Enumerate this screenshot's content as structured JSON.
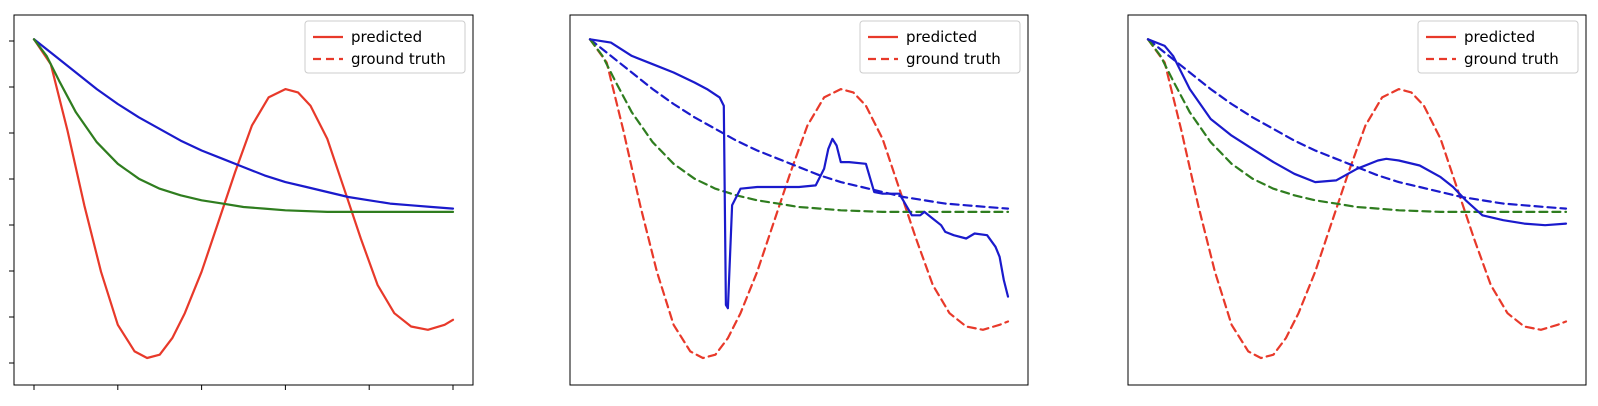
{
  "chart_data": [
    {
      "type": "line",
      "xlim": [
        0,
        100
      ],
      "ylim": [
        -0.95,
        1.05
      ],
      "xtick_count": 6,
      "ytick_count": 8,
      "legend": {
        "placement": "top-right",
        "entries": [
          {
            "label": "predicted",
            "style": "solid",
            "color": "#e8392a"
          },
          {
            "label": "ground truth",
            "style": "dashed",
            "color": "#e8392a"
          }
        ]
      },
      "series": [
        {
          "style": "solid",
          "color": "#e8392a",
          "x": [
            0,
            4,
            8,
            12,
            16,
            20,
            24,
            27,
            30,
            33,
            36,
            40,
            44,
            48,
            52,
            56,
            60,
            63,
            66,
            70,
            74,
            78,
            82,
            86,
            90,
            94,
            98,
            100
          ],
          "y": [
            1.0,
            0.85,
            0.45,
            0.0,
            -0.4,
            -0.72,
            -0.88,
            -0.92,
            -0.9,
            -0.8,
            -0.65,
            -0.4,
            -0.1,
            0.2,
            0.48,
            0.65,
            0.7,
            0.68,
            0.6,
            0.4,
            0.1,
            -0.2,
            -0.48,
            -0.65,
            -0.73,
            -0.75,
            -0.72,
            -0.69
          ]
        },
        {
          "style": "solid",
          "color": "#1a1acc",
          "x": [
            0,
            5,
            10,
            15,
            20,
            25,
            30,
            35,
            40,
            45,
            50,
            55,
            60,
            65,
            70,
            75,
            80,
            85,
            90,
            95,
            100
          ],
          "y": [
            1.0,
            0.9,
            0.8,
            0.7,
            0.61,
            0.53,
            0.46,
            0.39,
            0.33,
            0.28,
            0.23,
            0.18,
            0.14,
            0.11,
            0.08,
            0.05,
            0.03,
            0.01,
            0.0,
            -0.01,
            -0.02
          ]
        },
        {
          "style": "solid",
          "color": "#2f7d1f",
          "x": [
            0,
            3,
            6,
            10,
            15,
            20,
            25,
            30,
            35,
            40,
            45,
            50,
            55,
            60,
            70,
            80,
            90,
            100
          ],
          "y": [
            1.0,
            0.9,
            0.75,
            0.56,
            0.38,
            0.25,
            0.16,
            0.1,
            0.06,
            0.03,
            0.01,
            -0.01,
            -0.02,
            -0.03,
            -0.04,
            -0.04,
            -0.04,
            -0.04
          ]
        }
      ]
    },
    {
      "type": "line",
      "xlim": [
        0,
        100
      ],
      "ylim": [
        -0.95,
        1.05
      ],
      "legend": {
        "placement": "top-right",
        "entries": [
          {
            "label": "predicted",
            "style": "solid",
            "color": "#e8392a"
          },
          {
            "label": "ground truth",
            "style": "dashed",
            "color": "#e8392a"
          }
        ]
      },
      "series": [
        {
          "style": "dashed",
          "color": "#e8392a",
          "x": [
            0,
            4,
            8,
            12,
            16,
            20,
            24,
            27,
            30,
            33,
            36,
            40,
            44,
            48,
            52,
            56,
            60,
            63,
            66,
            70,
            74,
            78,
            82,
            86,
            90,
            94,
            98,
            100
          ],
          "y": [
            1.0,
            0.86,
            0.45,
            0.0,
            -0.4,
            -0.72,
            -0.88,
            -0.92,
            -0.9,
            -0.8,
            -0.65,
            -0.4,
            -0.1,
            0.2,
            0.48,
            0.65,
            0.7,
            0.68,
            0.6,
            0.4,
            0.1,
            -0.2,
            -0.48,
            -0.65,
            -0.73,
            -0.75,
            -0.72,
            -0.7
          ]
        },
        {
          "style": "dashed",
          "color": "#1a1acc",
          "x": [
            0,
            5,
            10,
            15,
            20,
            25,
            30,
            35,
            40,
            45,
            50,
            55,
            60,
            65,
            70,
            75,
            80,
            85,
            90,
            95,
            100
          ],
          "y": [
            1.0,
            0.9,
            0.8,
            0.7,
            0.61,
            0.53,
            0.46,
            0.39,
            0.33,
            0.28,
            0.23,
            0.18,
            0.14,
            0.11,
            0.08,
            0.05,
            0.03,
            0.01,
            0.0,
            -0.01,
            -0.02
          ]
        },
        {
          "style": "dashed",
          "color": "#2f7d1f",
          "x": [
            0,
            3,
            6,
            10,
            15,
            20,
            25,
            30,
            35,
            40,
            45,
            50,
            55,
            60,
            70,
            80,
            90,
            100
          ],
          "y": [
            1.0,
            0.9,
            0.75,
            0.56,
            0.38,
            0.25,
            0.16,
            0.1,
            0.06,
            0.03,
            0.01,
            -0.01,
            -0.02,
            -0.03,
            -0.04,
            -0.04,
            -0.04,
            -0.04
          ]
        },
        {
          "style": "solid",
          "color": "#1a1acc",
          "x": [
            0,
            5,
            10,
            15,
            20,
            25,
            28,
            31,
            32,
            32.5,
            33,
            34,
            36,
            40,
            45,
            50,
            54,
            56,
            57,
            58,
            59,
            60,
            62,
            66,
            68,
            70,
            72,
            74,
            77,
            79,
            80,
            82,
            84,
            85,
            87,
            90,
            92,
            95,
            97,
            98,
            99,
            100
          ],
          "y": [
            1.0,
            0.98,
            0.9,
            0.85,
            0.8,
            0.74,
            0.7,
            0.65,
            0.6,
            -0.6,
            -0.62,
            0.0,
            0.1,
            0.11,
            0.11,
            0.11,
            0.12,
            0.22,
            0.34,
            0.4,
            0.36,
            0.26,
            0.26,
            0.25,
            0.08,
            0.07,
            0.07,
            0.07,
            -0.06,
            -0.06,
            -0.04,
            -0.08,
            -0.12,
            -0.16,
            -0.18,
            -0.2,
            -0.17,
            -0.18,
            -0.25,
            -0.31,
            -0.45,
            -0.55
          ]
        }
      ]
    },
    {
      "type": "line",
      "xlim": [
        0,
        100
      ],
      "ylim": [
        -0.95,
        1.05
      ],
      "legend": {
        "placement": "top-right",
        "entries": [
          {
            "label": "predicted",
            "style": "solid",
            "color": "#e8392a"
          },
          {
            "label": "ground truth",
            "style": "dashed",
            "color": "#e8392a"
          }
        ]
      },
      "series": [
        {
          "style": "dashed",
          "color": "#e8392a",
          "x": [
            0,
            4,
            8,
            12,
            16,
            20,
            24,
            27,
            30,
            33,
            36,
            40,
            44,
            48,
            52,
            56,
            60,
            63,
            66,
            70,
            74,
            78,
            82,
            86,
            90,
            94,
            98,
            100
          ],
          "y": [
            1.0,
            0.86,
            0.45,
            0.0,
            -0.4,
            -0.72,
            -0.88,
            -0.92,
            -0.9,
            -0.8,
            -0.65,
            -0.4,
            -0.1,
            0.2,
            0.48,
            0.65,
            0.7,
            0.68,
            0.6,
            0.4,
            0.1,
            -0.2,
            -0.48,
            -0.65,
            -0.73,
            -0.75,
            -0.72,
            -0.7
          ]
        },
        {
          "style": "dashed",
          "color": "#1a1acc",
          "x": [
            0,
            5,
            10,
            15,
            20,
            25,
            30,
            35,
            40,
            45,
            50,
            55,
            60,
            65,
            70,
            75,
            80,
            85,
            90,
            95,
            100
          ],
          "y": [
            1.0,
            0.9,
            0.8,
            0.7,
            0.61,
            0.53,
            0.46,
            0.39,
            0.33,
            0.28,
            0.23,
            0.18,
            0.14,
            0.11,
            0.08,
            0.05,
            0.03,
            0.01,
            0.0,
            -0.01,
            -0.02
          ]
        },
        {
          "style": "dashed",
          "color": "#2f7d1f",
          "x": [
            0,
            3,
            6,
            10,
            15,
            20,
            25,
            30,
            35,
            40,
            45,
            50,
            55,
            60,
            70,
            80,
            90,
            100
          ],
          "y": [
            1.0,
            0.9,
            0.75,
            0.56,
            0.38,
            0.25,
            0.16,
            0.1,
            0.06,
            0.03,
            0.01,
            -0.01,
            -0.02,
            -0.03,
            -0.04,
            -0.04,
            -0.04,
            -0.04
          ]
        },
        {
          "style": "solid",
          "color": "#1a1acc",
          "x": [
            0,
            4,
            6,
            10,
            15,
            20,
            25,
            30,
            35,
            40,
            45,
            50,
            55,
            57,
            60,
            65,
            70,
            73,
            76,
            80,
            85,
            90,
            95,
            100
          ],
          "y": [
            1.0,
            0.96,
            0.9,
            0.7,
            0.52,
            0.42,
            0.34,
            0.26,
            0.19,
            0.14,
            0.15,
            0.22,
            0.27,
            0.28,
            0.27,
            0.24,
            0.17,
            0.11,
            0.03,
            -0.06,
            -0.09,
            -0.11,
            -0.12,
            -0.11
          ]
        }
      ]
    }
  ]
}
